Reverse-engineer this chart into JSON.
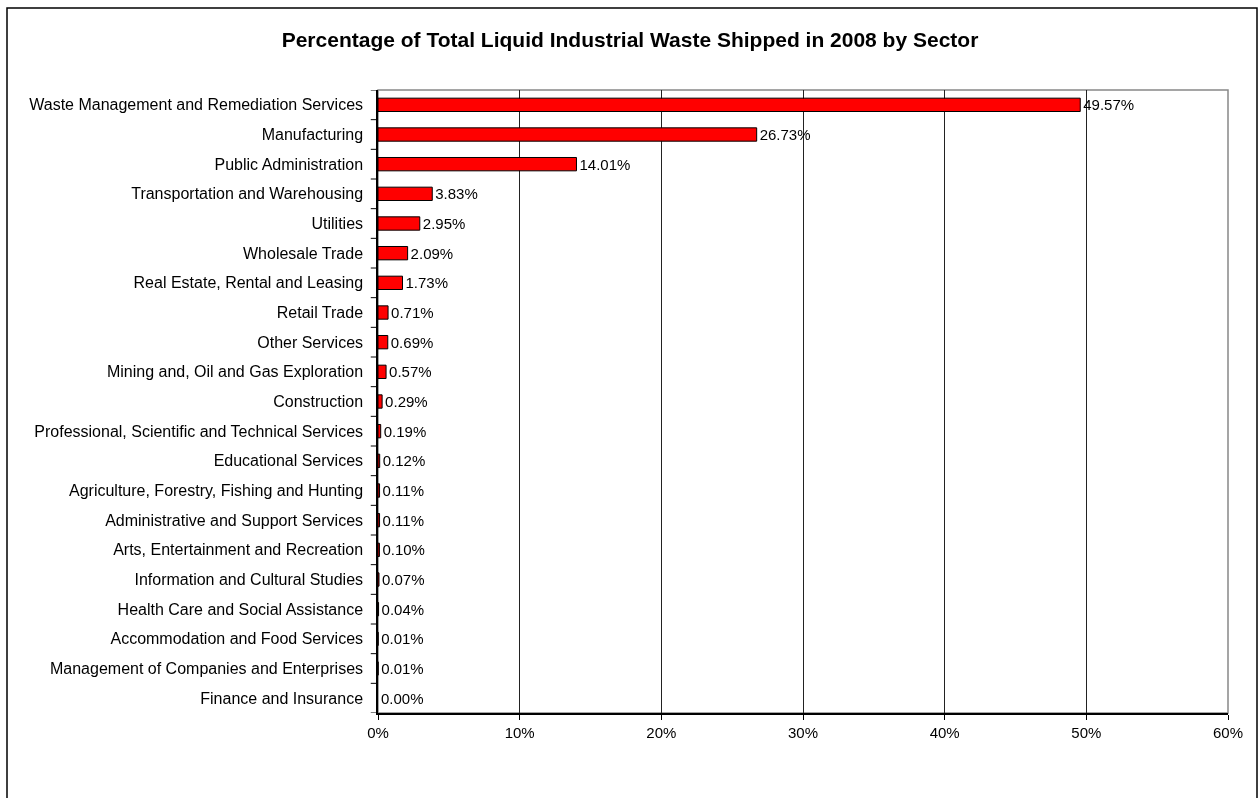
{
  "chart_data": {
    "type": "bar",
    "orientation": "horizontal",
    "title": "Percentage of Total Liquid Industrial Waste Shipped in 2008 by Sector",
    "categories": [
      "Waste Management and Remediation Services",
      "Manufacturing",
      "Public Administration",
      "Transportation and Warehousing",
      "Utilities",
      "Wholesale Trade",
      "Real Estate, Rental and Leasing",
      "Retail Trade",
      "Other Services",
      "Mining and, Oil and Gas Exploration",
      "Construction",
      "Professional, Scientific and Technical Services",
      "Educational Services",
      "Agriculture, Forestry, Fishing and Hunting",
      "Administrative and Support Services",
      "Arts, Entertainment and Recreation",
      "Information and Cultural Studies",
      "Health Care and Social Assistance",
      "Accommodation and Food Services",
      "Management of Companies and Enterprises",
      "Finance and Insurance"
    ],
    "values": [
      49.57,
      26.73,
      14.01,
      3.83,
      2.95,
      2.09,
      1.73,
      0.71,
      0.69,
      0.57,
      0.29,
      0.19,
      0.12,
      0.11,
      0.11,
      0.1,
      0.07,
      0.04,
      0.01,
      0.01,
      0.0
    ],
    "value_labels": [
      "49.57%",
      "26.73%",
      "14.01%",
      "3.83%",
      "2.95%",
      "2.09%",
      "1.73%",
      "0.71%",
      "0.69%",
      "0.57%",
      "0.29%",
      "0.19%",
      "0.12%",
      "0.11%",
      "0.11%",
      "0.10%",
      "0.07%",
      "0.04%",
      "0.01%",
      "0.01%",
      "0.00%"
    ],
    "color": "#ff0000",
    "xlim": [
      0,
      60
    ],
    "xticks": [
      {
        "value": 0,
        "label": "0%"
      },
      {
        "value": 10,
        "label": "10%"
      },
      {
        "value": 20,
        "label": "20%"
      },
      {
        "value": 30,
        "label": "30%"
      },
      {
        "value": 40,
        "label": "40%"
      },
      {
        "value": 50,
        "label": "50%"
      },
      {
        "value": 60,
        "label": "60%"
      }
    ],
    "grid": "x"
  }
}
